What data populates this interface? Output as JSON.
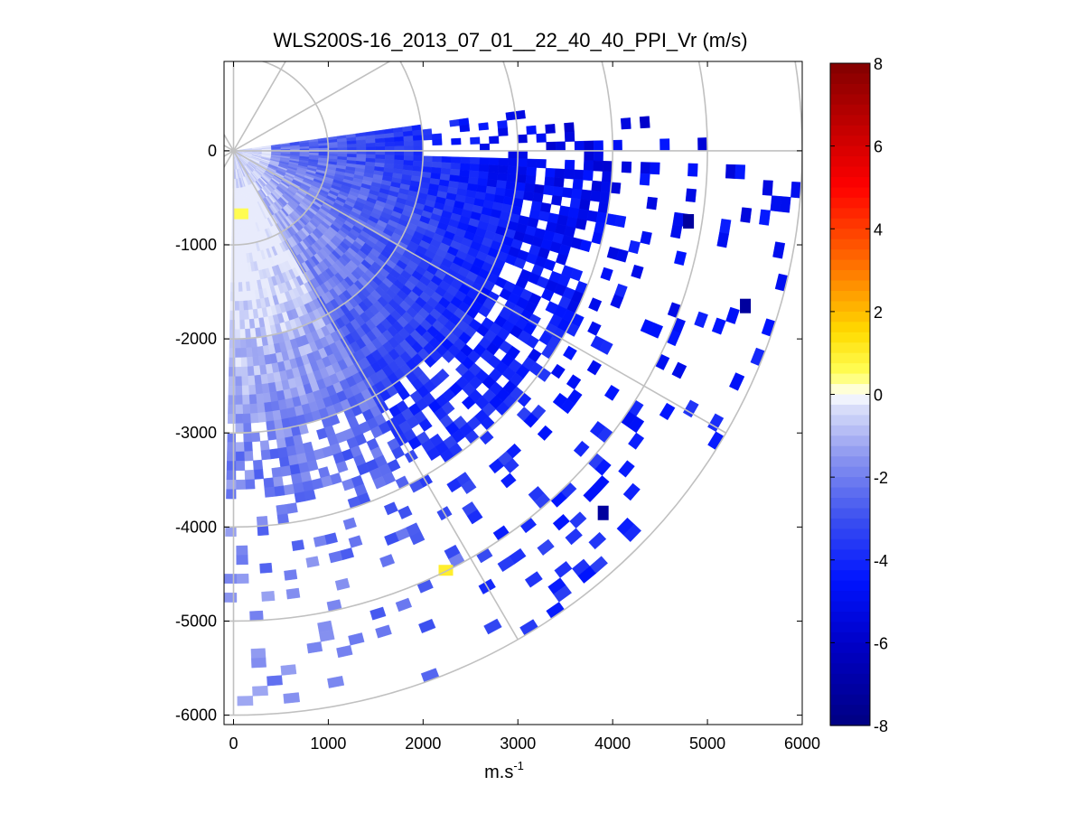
{
  "chart_data": {
    "type": "heatmap",
    "title": "WLS200S-16_2013_07_01__22_40_40_PPI_Vr (m/s)",
    "xlabel_base": "m.s",
    "xlabel_exp": "-1",
    "ylabel": "",
    "xlim": [
      -100,
      6000
    ],
    "ylim": [
      -6100,
      950
    ],
    "xticks": [
      0,
      1000,
      2000,
      3000,
      4000,
      5000,
      6000
    ],
    "yticks": [
      0,
      -1000,
      -2000,
      -3000,
      -4000,
      -5000,
      -6000
    ],
    "polar_grid": {
      "ring_radii": [
        1000,
        2000,
        3000,
        4000,
        5000,
        6000
      ],
      "spoke_angles_deg": [
        30,
        60,
        90,
        120,
        150,
        180
      ],
      "ray_max_range": 6000
    },
    "colorbar": {
      "range": [
        -8,
        8
      ],
      "ticks": [
        8,
        6,
        4,
        2,
        0,
        -2,
        -4,
        -6,
        -8
      ],
      "colormap": "blue-white-yellow-red"
    },
    "scan_sector_deg": [
      80,
      170
    ],
    "patches": [
      {
        "az": 0,
        "r0": 0,
        "r1": 3600,
        "v": -4.5
      },
      {
        "az": 0,
        "r0": 3600,
        "r1": 6000,
        "v": -4.8,
        "sparse": true
      },
      {
        "az": 30,
        "r0": 0,
        "r1": 1000,
        "v": -1.5
      },
      {
        "az": 30,
        "r0": 1000,
        "r1": 3600,
        "v": -3.5
      },
      {
        "az": 30,
        "r0": 3600,
        "r1": 6000,
        "v": -4.5,
        "sparse": true
      },
      {
        "az": 60,
        "r0": 0,
        "r1": 1000,
        "v": -1.0
      },
      {
        "az": 60,
        "r0": 1000,
        "r1": 3000,
        "v": -3.0
      },
      {
        "az": 60,
        "r0": 3000,
        "r1": 6000,
        "v": -3.5,
        "sparse": true
      },
      {
        "az": 90,
        "r0": 0,
        "r1": 1000,
        "v": -0.5
      },
      {
        "az": 90,
        "r0": 1000,
        "r1": 4000,
        "v": -2.5
      },
      {
        "az": 90,
        "r0": 4000,
        "r1": 6000,
        "v": -2.5,
        "sparse": true
      },
      {
        "az": 2240,
        "r": 4460,
        "v": 1.0,
        "point": true
      }
    ]
  }
}
